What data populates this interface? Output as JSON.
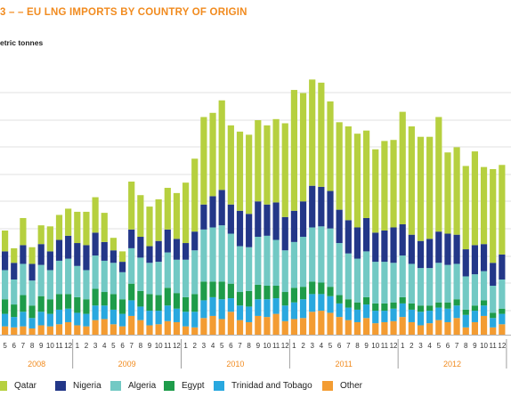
{
  "header": {
    "title": "3 – – EU LNG IMPORTS BY COUNTRY OF ORIGIN",
    "unit": "etric tonnes"
  },
  "chart_data": {
    "type": "bar",
    "stacked": true,
    "title": "EU LNG IMPORTS BY COUNTRY OF ORIGIN",
    "ylabel": "",
    "grid": true,
    "legend": "bottom",
    "years": [
      "2008",
      "2009",
      "2010",
      "2011",
      "2012"
    ],
    "first_month_label": "5",
    "month_labels": [
      "5",
      "6",
      "7",
      "8",
      "9",
      "10",
      "11",
      "12",
      "1",
      "2",
      "3",
      "4",
      "5",
      "6",
      "7",
      "8",
      "9",
      "10",
      "11",
      "12",
      "1",
      "2",
      "3",
      "4",
      "5",
      "6",
      "7",
      "8",
      "9",
      "10",
      "11",
      "12",
      "1",
      "2",
      "3",
      "4",
      "5",
      "6",
      "7",
      "8",
      "9",
      "10",
      "11",
      "12",
      "1",
      "2",
      "3",
      "4",
      "5",
      "6",
      "7",
      "8",
      "9",
      "10",
      "11",
      "12"
    ],
    "series": [
      {
        "name": "Other",
        "color": "#f39c32",
        "values": [
          8,
          7,
          8,
          6,
          9,
          8,
          10,
          12,
          9,
          8,
          14,
          15,
          10,
          8,
          18,
          14,
          9,
          10,
          13,
          12,
          8,
          7,
          16,
          18,
          15,
          22,
          14,
          12,
          18,
          17,
          20,
          13,
          15,
          16,
          22,
          23,
          21,
          17,
          14,
          12,
          16,
          11,
          12,
          13,
          17,
          12,
          9,
          11,
          14,
          12,
          16,
          7,
          12,
          18,
          7,
          10
        ]
      },
      {
        "name": "Trinidad and Tobago",
        "color": "#29a8df",
        "values": [
          12,
          10,
          14,
          10,
          13,
          12,
          14,
          13,
          12,
          12,
          14,
          13,
          14,
          12,
          15,
          13,
          14,
          13,
          15,
          13,
          14,
          15,
          17,
          18,
          19,
          13,
          14,
          15,
          16,
          17,
          15,
          15,
          16,
          18,
          17,
          16,
          16,
          13,
          12,
          12,
          13,
          12,
          11,
          12,
          13,
          12,
          13,
          12,
          12,
          13,
          12,
          12,
          11,
          10,
          9,
          10
        ]
      },
      {
        "name": "Egypt",
        "color": "#1e9c4a",
        "values": [
          14,
          12,
          16,
          12,
          15,
          14,
          15,
          14,
          15,
          14,
          16,
          13,
          15,
          14,
          16,
          15,
          16,
          15,
          17,
          15,
          14,
          17,
          18,
          15,
          17,
          14,
          13,
          15,
          14,
          13,
          12,
          13,
          14,
          12,
          12,
          11,
          9,
          8,
          8,
          7,
          7,
          7,
          7,
          6,
          6,
          6,
          6,
          5,
          5,
          6,
          6,
          5,
          5,
          5,
          5,
          5
        ]
      },
      {
        "name": "Algeria",
        "color": "#72c9c4",
        "values": [
          28,
          24,
          30,
          24,
          30,
          28,
          32,
          34,
          30,
          28,
          32,
          30,
          30,
          26,
          34,
          32,
          30,
          32,
          34,
          32,
          36,
          42,
          50,
          52,
          54,
          48,
          44,
          42,
          46,
          48,
          44,
          40,
          44,
          48,
          52,
          54,
          56,
          50,
          44,
          42,
          44,
          40,
          40,
          38,
          40,
          38,
          36,
          36,
          38,
          36,
          34,
          32,
          30,
          28,
          26,
          28
        ]
      },
      {
        "name": "Nigeria",
        "color": "#233788",
        "values": [
          18,
          16,
          18,
          16,
          20,
          18,
          20,
          22,
          22,
          24,
          22,
          18,
          12,
          10,
          18,
          20,
          16,
          20,
          22,
          20,
          16,
          18,
          24,
          30,
          34,
          28,
          34,
          32,
          34,
          30,
          36,
          32,
          30,
          34,
          40,
          38,
          36,
          32,
          32,
          30,
          32,
          28,
          30,
          34,
          30,
          28,
          26,
          28,
          30,
          30,
          28,
          26,
          28,
          26,
          22,
          24
        ]
      },
      {
        "name": "Qatar",
        "color": "#b6d03f",
        "values": [
          20,
          14,
          26,
          16,
          18,
          24,
          24,
          26,
          30,
          32,
          34,
          28,
          12,
          10,
          46,
          40,
          38,
          40,
          40,
          44,
          58,
          70,
          84,
          80,
          86,
          76,
          76,
          76,
          78,
          76,
          80,
          90,
          116,
          104,
          102,
          100,
          86,
          84,
          90,
          90,
          84,
          80,
          86,
          84,
          108,
          104,
          100,
          98,
          110,
          78,
          84,
          80,
          90,
          74,
          90,
          86
        ]
      }
    ]
  }
}
